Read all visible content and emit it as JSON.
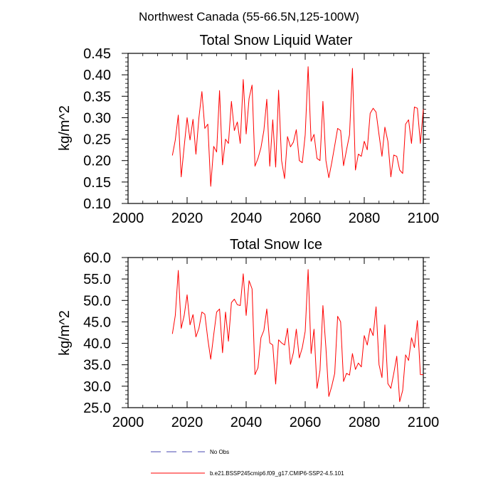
{
  "figure": {
    "title": "Northwest Canada (55-66.5N,125-100W)",
    "legend": [
      {
        "label": "No Obs",
        "style": "dashed",
        "color": "#4a4ab0"
      },
      {
        "label": "b.e21.BSSP245cmip6.f09_g17.CMIP6-SSP2-4.5.101",
        "style": "solid",
        "color": "#ff0000"
      }
    ]
  },
  "chart_data": [
    {
      "type": "line",
      "title": "Total Snow Liquid Water",
      "xlabel": "",
      "ylabel": "kg/m^2",
      "xlim": [
        2000,
        2100
      ],
      "ylim": [
        0.1,
        0.45
      ],
      "xticks": [
        2000,
        2020,
        2040,
        2060,
        2080,
        2100
      ],
      "yticks": [
        0.1,
        0.15,
        0.2,
        0.25,
        0.3,
        0.35,
        0.4,
        0.45
      ],
      "ytick_labels": [
        "0.10",
        "0.15",
        "0.20",
        "0.25",
        "0.30",
        "0.35",
        "0.40",
        "0.45"
      ],
      "series": [
        {
          "name": "b.e21.BSSP245cmip6.f09_g17.CMIP6-SSP2-4.5.101",
          "color": "#ff0000",
          "x_start": 2015,
          "values": [
            0.212,
            0.248,
            0.306,
            0.162,
            0.233,
            0.3,
            0.248,
            0.296,
            0.215,
            0.3,
            0.361,
            0.275,
            0.285,
            0.14,
            0.233,
            0.22,
            0.363,
            0.19,
            0.25,
            0.24,
            0.338,
            0.27,
            0.29,
            0.24,
            0.389,
            0.262,
            0.345,
            0.376,
            0.187,
            0.205,
            0.23,
            0.27,
            0.343,
            0.187,
            0.295,
            0.185,
            0.364,
            0.2,
            0.158,
            0.256,
            0.232,
            0.243,
            0.272,
            0.2,
            0.195,
            0.26,
            0.419,
            0.245,
            0.261,
            0.205,
            0.2,
            0.338,
            0.2,
            0.16,
            0.195,
            0.235,
            0.275,
            0.27,
            0.188,
            0.225,
            0.26,
            0.415,
            0.178,
            0.215,
            0.21,
            0.245,
            0.225,
            0.31,
            0.322,
            0.313,
            0.26,
            0.21,
            0.278,
            0.245,
            0.162,
            0.213,
            0.21,
            0.178,
            0.17,
            0.285,
            0.295,
            0.24,
            0.325,
            0.322,
            0.24,
            0.32
          ]
        }
      ]
    },
    {
      "type": "line",
      "title": "Total Snow Ice",
      "xlabel": "",
      "ylabel": "kg/m^2",
      "xlim": [
        2000,
        2100
      ],
      "ylim": [
        25,
        60
      ],
      "xticks": [
        2000,
        2020,
        2040,
        2060,
        2080,
        2100
      ],
      "yticks": [
        25,
        30,
        35,
        40,
        45,
        50,
        55,
        60
      ],
      "ytick_labels": [
        "25.0",
        "30.0",
        "35.0",
        "40.0",
        "45.0",
        "50.0",
        "55.0",
        "60.0"
      ],
      "series": [
        {
          "name": "b.e21.BSSP245cmip6.f09_g17.CMIP6-SSP2-4.5.101",
          "color": "#ff0000",
          "x_start": 2015,
          "values": [
            42.2,
            46.5,
            57.0,
            43.5,
            46.5,
            51.3,
            44.3,
            46.7,
            41.5,
            43.5,
            47.3,
            46.8,
            41.0,
            36.3,
            42.0,
            47.3,
            48.0,
            37.8,
            47.3,
            40.5,
            49.5,
            50.3,
            49.0,
            48.8,
            56.2,
            46.5,
            54.6,
            52.7,
            32.7,
            34.3,
            41.3,
            43.0,
            48.0,
            40.1,
            39.6,
            30.5,
            40.8,
            40.1,
            39.6,
            43.5,
            35.1,
            37.8,
            43.3,
            36.6,
            39.0,
            42.8,
            57.2,
            37.6,
            43.3,
            29.5,
            33.7,
            48.8,
            39.0,
            27.6,
            30.0,
            33.0,
            46.3,
            45.0,
            31.1,
            33.0,
            32.6,
            37.6,
            33.9,
            35.4,
            34.5,
            41.8,
            39.6,
            43.5,
            41.8,
            48.5,
            35.0,
            32.0,
            44.3,
            30.6,
            29.5,
            33.0,
            37.0,
            26.4,
            29.0,
            37.3,
            36.0,
            41.3,
            39.0,
            45.3,
            32.7,
            32.7
          ]
        }
      ]
    }
  ]
}
